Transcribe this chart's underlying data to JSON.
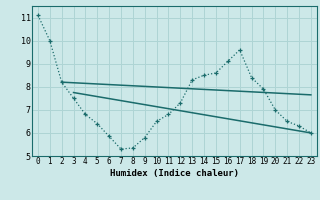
{
  "xlabel": "Humidex (Indice chaleur)",
  "bg_color": "#cce8e8",
  "grid_color": "#aed4d4",
  "line_color": "#1a6b6b",
  "xlim": [
    -0.5,
    23.5
  ],
  "ylim": [
    5,
    11.5
  ],
  "yticks": [
    5,
    6,
    7,
    8,
    9,
    10,
    11
  ],
  "xticks": [
    0,
    1,
    2,
    3,
    4,
    5,
    6,
    7,
    8,
    9,
    10,
    11,
    12,
    13,
    14,
    15,
    16,
    17,
    18,
    19,
    20,
    21,
    22,
    23
  ],
  "series1_x": [
    0,
    1,
    2,
    3,
    4,
    5,
    6,
    7,
    8,
    9,
    10,
    11,
    12,
    13,
    14,
    15,
    16,
    17,
    18,
    19,
    20,
    21,
    22,
    23
  ],
  "series1_y": [
    11.1,
    10.0,
    8.2,
    7.5,
    6.8,
    6.4,
    5.85,
    5.3,
    5.35,
    5.8,
    6.5,
    6.8,
    7.3,
    8.3,
    8.5,
    8.6,
    9.1,
    9.6,
    8.4,
    7.9,
    7.0,
    6.5,
    6.3,
    6.0
  ],
  "series2_x": [
    2,
    23
  ],
  "series2_y": [
    8.2,
    7.65
  ],
  "series3_x": [
    3,
    23
  ],
  "series3_y": [
    7.75,
    6.0
  ],
  "tick_fontsize": 5.5,
  "xlabel_fontsize": 6.5
}
